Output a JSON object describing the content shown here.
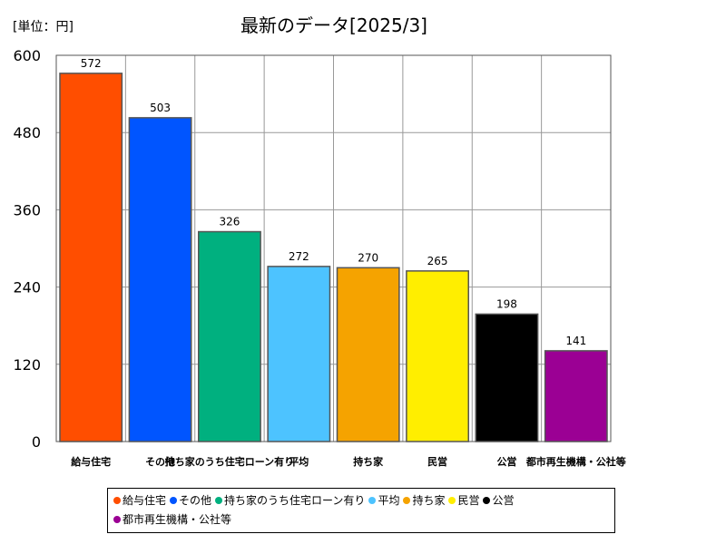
{
  "chart_data": {
    "type": "bar",
    "title": "最新のデータ[2025/3]",
    "unit_label": "[単位：円]",
    "xlabel": "",
    "ylabel": "",
    "ylim": [
      0,
      600
    ],
    "yticks": [
      0,
      120,
      240,
      360,
      480,
      600
    ],
    "grid": true,
    "legend_position": "bottom",
    "categories": [
      "給与住宅",
      "その他",
      "持ち家のうち住宅ローン有り",
      "平均",
      "持ち家",
      "民営",
      "公営",
      "都市再生機構・公社等"
    ],
    "xtick_labels": [
      "給与住宅",
      "その他",
      "持ち家のうち住宅ローン有り",
      "平均",
      "持ち家",
      "民営",
      "公営",
      "都市再生機構・公社等"
    ],
    "values": [
      572,
      503,
      326,
      272,
      270,
      265,
      198,
      141
    ],
    "colors": [
      "#FF4E00",
      "#0055FF",
      "#00B07F",
      "#4DC3FF",
      "#F5A300",
      "#FFEE00",
      "#000000",
      "#9B0094"
    ]
  }
}
